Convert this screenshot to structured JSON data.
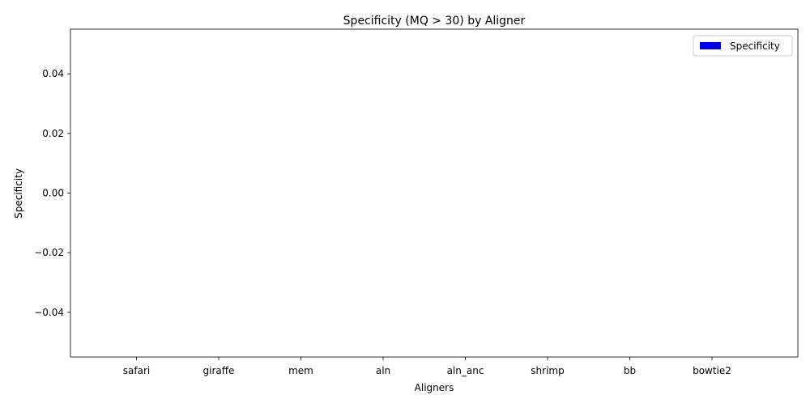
{
  "chart_data": {
    "type": "bar",
    "title": "Specificity (MQ > 30) by Aligner",
    "xlabel": "Aligners",
    "ylabel": "Specificity",
    "categories": [
      "safari",
      "giraffe",
      "mem",
      "aln",
      "aln_anc",
      "shrimp",
      "bb",
      "bowtie2"
    ],
    "series": [
      {
        "name": "Specificity",
        "values": [
          0,
          0,
          0,
          0,
          0,
          0,
          0,
          0
        ],
        "color": "#0000ff"
      }
    ],
    "ylim": [
      -0.055,
      0.055
    ],
    "yticks": [
      -0.04,
      -0.02,
      0.0,
      0.02,
      0.04
    ],
    "ytick_labels": [
      "−0.04",
      "−0.02",
      "0.00",
      "0.02",
      "0.04"
    ],
    "grid": false,
    "legend_position": "top-right"
  }
}
